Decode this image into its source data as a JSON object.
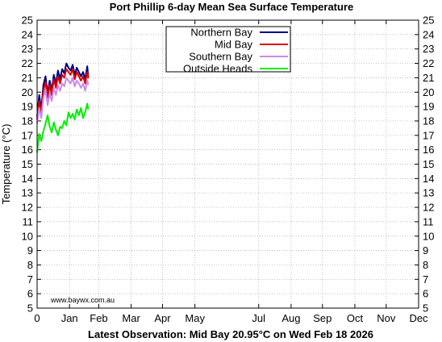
{
  "chart_data": {
    "type": "line",
    "title": "Port Phillip 6-day Mean Sea Surface Temperature",
    "ylabel": "Temperature (°C)",
    "footer": "Latest Observation: Mid Bay 20.95°C on Wed Feb 18 2026",
    "watermark": "www.baywx.com.au",
    "ylim": [
      5,
      25
    ],
    "yticks": [
      5,
      6,
      7,
      8,
      9,
      10,
      11,
      12,
      13,
      14,
      15,
      16,
      17,
      18,
      19,
      20,
      21,
      22,
      23,
      24,
      25
    ],
    "xlim": [
      0,
      365
    ],
    "xtick_labels": [
      "0",
      "Jan",
      "Feb",
      "Mar",
      "Apr",
      "May",
      "Jul",
      "Aug",
      "Sep",
      "Oct",
      "Nov",
      "Dec"
    ],
    "xtick_positions": [
      0,
      31,
      59,
      90,
      120,
      151,
      212,
      243,
      273,
      304,
      334,
      365
    ],
    "grid": true,
    "legend_position": "top-center",
    "series": [
      {
        "name": "Northern Bay",
        "color": "#000080",
        "x": [
          0,
          2,
          4,
          6,
          8,
          10,
          12,
          14,
          16,
          18,
          20,
          22,
          24,
          26,
          28,
          30,
          32,
          34,
          36,
          38,
          40,
          42,
          44,
          46,
          48,
          49
        ],
        "values": [
          18.3,
          19.8,
          18.8,
          20.5,
          21.1,
          19.9,
          20.8,
          20.1,
          21.2,
          20.6,
          21.5,
          20.9,
          21.6,
          21.3,
          22.0,
          21.7,
          21.5,
          21.9,
          21.2,
          21.7,
          21.4,
          21.1,
          21.4,
          20.9,
          21.8,
          21.0
        ]
      },
      {
        "name": "Mid Bay",
        "color": "#dd0000",
        "x": [
          0,
          2,
          4,
          6,
          8,
          10,
          12,
          14,
          16,
          18,
          20,
          22,
          24,
          26,
          28,
          30,
          32,
          34,
          36,
          38,
          40,
          42,
          44,
          46,
          48,
          49
        ],
        "values": [
          18.1,
          19.4,
          18.5,
          20.1,
          20.7,
          19.6,
          20.5,
          19.8,
          20.9,
          20.3,
          21.1,
          20.6,
          21.2,
          21.0,
          21.6,
          21.4,
          21.2,
          21.6,
          20.9,
          21.4,
          21.1,
          20.8,
          21.1,
          20.6,
          21.4,
          20.95
        ]
      },
      {
        "name": "Southern Bay",
        "color": "#cc88ee",
        "x": [
          0,
          2,
          4,
          6,
          8,
          10,
          12,
          14,
          16,
          18,
          20,
          22,
          24,
          26,
          28,
          30,
          32,
          34,
          36,
          38,
          40,
          42,
          44,
          46,
          48,
          49
        ],
        "values": [
          17.8,
          18.9,
          18.2,
          19.6,
          20.2,
          19.1,
          19.9,
          19.4,
          20.3,
          19.8,
          20.5,
          20.1,
          20.6,
          20.4,
          21.0,
          20.8,
          20.6,
          21.0,
          20.4,
          20.8,
          20.6,
          20.3,
          20.6,
          20.1,
          20.8,
          20.5
        ]
      },
      {
        "name": "Outside Heads",
        "color": "#00ee00",
        "x": [
          0,
          2,
          4,
          6,
          8,
          10,
          12,
          14,
          16,
          18,
          20,
          22,
          24,
          26,
          28,
          30,
          32,
          34,
          36,
          38,
          40,
          42,
          44,
          46,
          48,
          49
        ],
        "values": [
          15.8,
          17.1,
          16.6,
          17.3,
          17.8,
          18.4,
          17.6,
          17.2,
          17.9,
          17.4,
          17.0,
          17.6,
          17.5,
          18.0,
          17.7,
          18.6,
          18.2,
          18.5,
          18.1,
          18.8,
          18.4,
          18.9,
          18.2,
          18.6,
          19.2,
          18.8
        ]
      }
    ]
  }
}
